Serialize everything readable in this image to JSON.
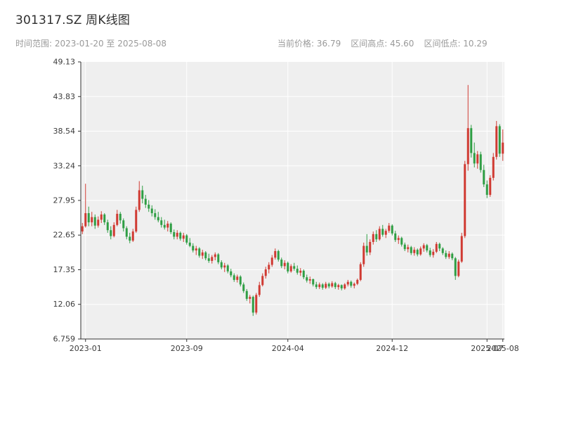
{
  "header": {
    "title": "301317.SZ 周K线图",
    "time_range": "时间范围: 2023-01-20 至 2025-08-08",
    "current_price_label": "当前价格: 36.79",
    "range_high_label": "区间高点: 45.60",
    "range_low_label": "区间低点: 10.29"
  },
  "chart_data": {
    "type": "candlestick",
    "symbol": "301317.SZ",
    "title": "301317.SZ 周K线图",
    "frequency": "weekly",
    "current_price": 36.79,
    "range_high": 45.6,
    "range_low": 10.29,
    "ylim": [
      6.759,
      49.13
    ],
    "yticks": [
      {
        "value": 49.13,
        "label": "49.13"
      },
      {
        "value": 43.83,
        "label": "43.83"
      },
      {
        "value": 38.54,
        "label": "38.54"
      },
      {
        "value": 33.24,
        "label": "33.24"
      },
      {
        "value": 27.95,
        "label": "27.95"
      },
      {
        "value": 22.65,
        "label": "22.65"
      },
      {
        "value": 17.35,
        "label": "17.35"
      },
      {
        "value": 12.06,
        "label": "12.06"
      },
      {
        "value": 6.759,
        "label": "6.759"
      }
    ],
    "xticks": [
      {
        "index": 1,
        "label": "2023-01"
      },
      {
        "index": 33,
        "label": "2023-09"
      },
      {
        "index": 65,
        "label": "2024-04"
      },
      {
        "index": 98,
        "label": "2024-12"
      },
      {
        "index": 128,
        "label": "2025-07"
      },
      {
        "index": 133,
        "label": "2025-08"
      }
    ],
    "colors": {
      "up": "#d03a32",
      "down": "#2f9e44",
      "plot_bg": "#efefef",
      "grid": "#ffffff",
      "axis": "#333333",
      "tick_label": "#3b3b3b"
    },
    "candles": [
      [
        "2023-01-20",
        23.2,
        24.5,
        22.8,
        24.0
      ],
      [
        "2023-01-27",
        24.0,
        30.5,
        23.8,
        26.0
      ],
      [
        "2023-02-03",
        26.0,
        27.0,
        24.0,
        24.6
      ],
      [
        "2023-02-10",
        24.6,
        26.2,
        24.0,
        25.4
      ],
      [
        "2023-02-17",
        25.4,
        25.8,
        23.6,
        24.1
      ],
      [
        "2023-02-24",
        24.1,
        25.5,
        23.8,
        25.0
      ],
      [
        "2023-03-03",
        25.0,
        26.3,
        24.5,
        25.8
      ],
      [
        "2023-03-10",
        25.8,
        26.0,
        24.2,
        24.6
      ],
      [
        "2023-03-17",
        24.6,
        25.0,
        23.0,
        23.4
      ],
      [
        "2023-03-24",
        23.4,
        24.0,
        22.0,
        22.5
      ],
      [
        "2023-03-31",
        22.5,
        24.6,
        22.3,
        24.2
      ],
      [
        "2023-04-07",
        24.2,
        26.5,
        24.0,
        25.9
      ],
      [
        "2023-04-14",
        25.9,
        26.2,
        24.4,
        24.9
      ],
      [
        "2023-04-21",
        24.9,
        25.2,
        23.2,
        23.7
      ],
      [
        "2023-04-28",
        23.7,
        24.0,
        22.0,
        22.4
      ],
      [
        "2023-05-05",
        22.4,
        23.0,
        21.4,
        21.8
      ],
      [
        "2023-05-12",
        21.8,
        23.6,
        21.6,
        23.2
      ],
      [
        "2023-05-19",
        23.2,
        27.0,
        23.0,
        26.5
      ],
      [
        "2023-05-26",
        26.5,
        30.9,
        26.2,
        29.5
      ],
      [
        "2023-06-02",
        29.5,
        30.2,
        27.5,
        28.2
      ],
      [
        "2023-06-09",
        28.2,
        28.8,
        26.8,
        27.3
      ],
      [
        "2023-06-16",
        27.3,
        28.0,
        26.2,
        26.7
      ],
      [
        "2023-06-23",
        26.7,
        27.2,
        25.5,
        26.0
      ],
      [
        "2023-06-30",
        26.0,
        26.6,
        25.0,
        25.4
      ],
      [
        "2023-07-07",
        25.4,
        26.2,
        24.6,
        24.9
      ],
      [
        "2023-07-14",
        24.9,
        25.4,
        23.8,
        24.2
      ],
      [
        "2023-07-21",
        24.2,
        25.0,
        23.5,
        23.8
      ],
      [
        "2023-07-28",
        23.8,
        24.8,
        23.2,
        24.4
      ],
      [
        "2023-08-04",
        24.4,
        24.6,
        22.8,
        23.1
      ],
      [
        "2023-08-11",
        23.1,
        23.5,
        22.0,
        22.4
      ],
      [
        "2023-08-18",
        22.4,
        23.4,
        22.0,
        23.0
      ],
      [
        "2023-08-25",
        23.0,
        23.2,
        21.8,
        22.1
      ],
      [
        "2023-09-01",
        22.1,
        23.0,
        21.6,
        22.6
      ],
      [
        "2023-09-08",
        22.6,
        22.8,
        21.2,
        21.5
      ],
      [
        "2023-09-15",
        21.5,
        22.2,
        20.8,
        21.0
      ],
      [
        "2023-09-22",
        21.0,
        21.4,
        20.0,
        20.3
      ],
      [
        "2023-09-29",
        20.3,
        21.0,
        19.6,
        20.6
      ],
      [
        "2023-10-06",
        20.6,
        20.8,
        19.2,
        19.5
      ],
      [
        "2023-10-13",
        19.5,
        20.4,
        19.0,
        20.0
      ],
      [
        "2023-10-20",
        20.0,
        20.2,
        18.8,
        19.1
      ],
      [
        "2023-10-27",
        19.1,
        19.8,
        18.4,
        18.7
      ],
      [
        "2023-11-03",
        18.7,
        19.6,
        18.3,
        19.3
      ],
      [
        "2023-11-10",
        19.3,
        20.0,
        18.8,
        19.7
      ],
      [
        "2023-11-17",
        19.7,
        19.9,
        18.2,
        18.5
      ],
      [
        "2023-11-24",
        18.5,
        18.8,
        17.4,
        17.7
      ],
      [
        "2023-12-01",
        17.7,
        18.4,
        17.0,
        18.0
      ],
      [
        "2023-12-08",
        18.0,
        18.2,
        16.8,
        17.1
      ],
      [
        "2023-12-15",
        17.1,
        17.5,
        16.2,
        16.5
      ],
      [
        "2023-12-22",
        16.5,
        16.8,
        15.5,
        15.8
      ],
      [
        "2023-12-29",
        15.8,
        16.6,
        15.4,
        16.3
      ],
      [
        "2024-01-05",
        16.3,
        16.5,
        14.8,
        15.1
      ],
      [
        "2024-01-12",
        15.1,
        15.4,
        13.8,
        14.1
      ],
      [
        "2024-01-19",
        14.1,
        14.4,
        12.6,
        12.9
      ],
      [
        "2024-01-26",
        12.9,
        13.5,
        12.2,
        13.2
      ],
      [
        "2024-02-02",
        13.2,
        13.4,
        10.29,
        10.8
      ],
      [
        "2024-02-09",
        10.8,
        13.8,
        10.5,
        13.5
      ],
      [
        "2024-02-16",
        13.5,
        15.5,
        13.2,
        15.0
      ],
      [
        "2024-02-23",
        15.0,
        16.8,
        14.8,
        16.4
      ],
      [
        "2024-03-01",
        16.4,
        17.8,
        16.0,
        17.4
      ],
      [
        "2024-03-08",
        17.4,
        18.5,
        16.8,
        18.1
      ],
      [
        "2024-03-15",
        18.1,
        19.6,
        17.8,
        19.2
      ],
      [
        "2024-03-22",
        19.2,
        20.6,
        18.9,
        20.2
      ],
      [
        "2024-03-29",
        20.2,
        20.4,
        18.6,
        18.9
      ],
      [
        "2024-04-05",
        18.9,
        19.2,
        17.6,
        17.9
      ],
      [
        "2024-04-12",
        17.9,
        18.8,
        17.4,
        18.4
      ],
      [
        "2024-04-19",
        18.4,
        18.6,
        16.8,
        17.1
      ],
      [
        "2024-04-26",
        17.1,
        18.2,
        16.9,
        17.9
      ],
      [
        "2024-05-03",
        17.9,
        18.4,
        17.2,
        17.5
      ],
      [
        "2024-05-10",
        17.5,
        18.0,
        16.6,
        16.9
      ],
      [
        "2024-05-17",
        16.9,
        17.6,
        16.4,
        17.2
      ],
      [
        "2024-05-24",
        17.2,
        17.4,
        15.9,
        16.2
      ],
      [
        "2024-05-31",
        16.2,
        16.6,
        15.4,
        15.7
      ],
      [
        "2024-06-07",
        15.7,
        16.3,
        15.2,
        15.9
      ],
      [
        "2024-06-14",
        15.9,
        16.0,
        14.8,
        15.1
      ],
      [
        "2024-06-21",
        15.1,
        15.5,
        14.4,
        14.7
      ],
      [
        "2024-06-28",
        14.7,
        15.4,
        14.4,
        15.1
      ],
      [
        "2024-07-05",
        15.1,
        15.3,
        14.3,
        14.6
      ],
      [
        "2024-07-12",
        14.6,
        15.5,
        14.4,
        15.2
      ],
      [
        "2024-07-19",
        15.2,
        15.4,
        14.5,
        14.8
      ],
      [
        "2024-07-26",
        14.8,
        15.6,
        14.6,
        15.3
      ],
      [
        "2024-08-02",
        15.3,
        15.5,
        14.4,
        14.7
      ],
      [
        "2024-08-09",
        14.7,
        15.2,
        14.3,
        15.0
      ],
      [
        "2024-08-16",
        15.0,
        15.1,
        14.2,
        14.5
      ],
      [
        "2024-08-23",
        14.5,
        15.3,
        14.3,
        15.1
      ],
      [
        "2024-08-30",
        15.1,
        15.8,
        14.8,
        15.5
      ],
      [
        "2024-09-06",
        15.5,
        15.7,
        14.6,
        14.9
      ],
      [
        "2024-09-13",
        14.9,
        15.4,
        14.5,
        15.2
      ],
      [
        "2024-09-20",
        15.2,
        16.0,
        15.0,
        15.8
      ],
      [
        "2024-09-27",
        15.8,
        18.5,
        15.6,
        18.2
      ],
      [
        "2024-10-04",
        18.2,
        21.5,
        17.8,
        21.0
      ],
      [
        "2024-10-11",
        21.0,
        22.8,
        19.5,
        20.0
      ],
      [
        "2024-10-18",
        20.0,
        22.0,
        19.6,
        21.6
      ],
      [
        "2024-10-25",
        21.6,
        23.2,
        21.2,
        22.8
      ],
      [
        "2024-11-01",
        22.8,
        23.4,
        21.6,
        22.0
      ],
      [
        "2024-11-08",
        22.0,
        24.0,
        21.8,
        23.6
      ],
      [
        "2024-11-15",
        23.6,
        24.2,
        22.4,
        22.7
      ],
      [
        "2024-11-22",
        22.7,
        23.6,
        22.2,
        23.3
      ],
      [
        "2024-11-29",
        23.3,
        24.5,
        23.0,
        24.1
      ],
      [
        "2024-12-06",
        24.1,
        24.3,
        22.6,
        22.9
      ],
      [
        "2024-12-13",
        22.9,
        23.3,
        21.6,
        21.9
      ],
      [
        "2024-12-20",
        21.9,
        22.6,
        21.3,
        22.2
      ],
      [
        "2024-12-27",
        22.2,
        22.4,
        20.9,
        21.2
      ],
      [
        "2025-01-03",
        21.2,
        21.5,
        20.2,
        20.5
      ],
      [
        "2025-01-10",
        20.5,
        21.2,
        20.0,
        20.8
      ],
      [
        "2025-01-17",
        20.8,
        21.0,
        19.6,
        19.9
      ],
      [
        "2025-01-24",
        19.9,
        20.8,
        19.5,
        20.4
      ],
      [
        "2025-01-31",
        20.4,
        20.6,
        19.4,
        19.7
      ],
      [
        "2025-02-07",
        19.7,
        20.9,
        19.5,
        20.6
      ],
      [
        "2025-02-14",
        20.6,
        21.4,
        20.1,
        21.1
      ],
      [
        "2025-02-21",
        21.1,
        21.3,
        20.0,
        20.3
      ],
      [
        "2025-02-28",
        20.3,
        20.7,
        19.3,
        19.6
      ],
      [
        "2025-03-07",
        19.6,
        20.5,
        19.2,
        20.1
      ],
      [
        "2025-03-14",
        20.1,
        21.6,
        19.9,
        21.3
      ],
      [
        "2025-03-21",
        21.3,
        21.5,
        20.2,
        20.6
      ],
      [
        "2025-03-28",
        20.6,
        20.8,
        19.6,
        19.9
      ],
      [
        "2025-04-04",
        19.9,
        20.3,
        19.0,
        19.3
      ],
      [
        "2025-04-11",
        19.3,
        20.2,
        19.0,
        19.8
      ],
      [
        "2025-04-18",
        19.8,
        20.0,
        18.8,
        19.1
      ],
      [
        "2025-04-25",
        19.1,
        19.3,
        15.8,
        16.4
      ],
      [
        "2025-05-02",
        16.4,
        18.9,
        16.2,
        18.6
      ],
      [
        "2025-05-09",
        18.6,
        23.0,
        18.4,
        22.5
      ],
      [
        "2025-05-16",
        22.5,
        34.0,
        22.2,
        33.5
      ],
      [
        "2025-05-23",
        33.5,
        45.6,
        32.5,
        39.0
      ],
      [
        "2025-05-30",
        39.0,
        39.5,
        34.5,
        35.2
      ],
      [
        "2025-06-06",
        35.2,
        36.8,
        33.0,
        33.6
      ],
      [
        "2025-06-13",
        33.6,
        35.5,
        32.8,
        35.0
      ],
      [
        "2025-06-20",
        35.0,
        35.4,
        32.2,
        32.6
      ],
      [
        "2025-06-27",
        32.6,
        33.4,
        30.0,
        30.4
      ],
      [
        "2025-07-04",
        30.4,
        31.0,
        28.3,
        28.8
      ],
      [
        "2025-07-11",
        28.8,
        31.8,
        28.5,
        31.4
      ],
      [
        "2025-07-18",
        31.4,
        35.2,
        31.0,
        34.6
      ],
      [
        "2025-07-25",
        34.6,
        40.1,
        34.2,
        39.3
      ],
      [
        "2025-08-01",
        39.3,
        39.6,
        34.6,
        35.1
      ],
      [
        "2025-08-08",
        35.1,
        38.8,
        34.0,
        36.79
      ]
    ]
  }
}
